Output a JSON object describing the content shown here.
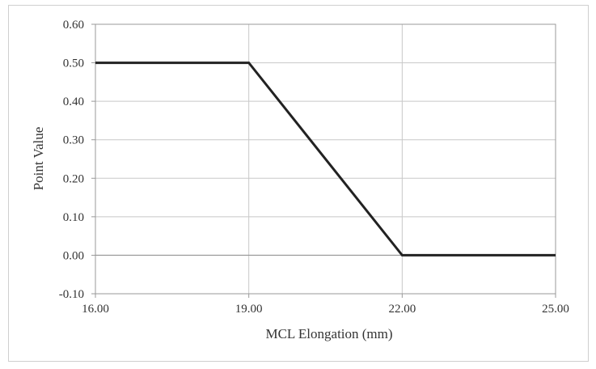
{
  "chart_data": {
    "type": "line",
    "title": "",
    "xlabel": "MCL Elongation (mm)",
    "ylabel": "Point Value",
    "xlim": [
      16,
      25
    ],
    "ylim": [
      -0.1,
      0.6
    ],
    "xticks": [
      "16.00",
      "19.00",
      "22.00",
      "25.00"
    ],
    "xtick_values": [
      16,
      19,
      22,
      25
    ],
    "yticks": [
      "0.60",
      "0.50",
      "0.40",
      "0.30",
      "0.20",
      "0.10",
      "0.00",
      "-0.10"
    ],
    "ytick_values": [
      0.6,
      0.5,
      0.4,
      0.3,
      0.2,
      0.1,
      0.0,
      -0.1
    ],
    "grid": true,
    "legend": "none",
    "series": [
      {
        "x": [
          16,
          19,
          22,
          25
        ],
        "y": [
          0.5,
          0.5,
          0.0,
          0.0
        ],
        "color": "#222222"
      }
    ],
    "colors": {
      "line": "#222222",
      "grid": "#c8c8c8",
      "axis": "#999999",
      "frame": "#cfcfcf"
    }
  }
}
